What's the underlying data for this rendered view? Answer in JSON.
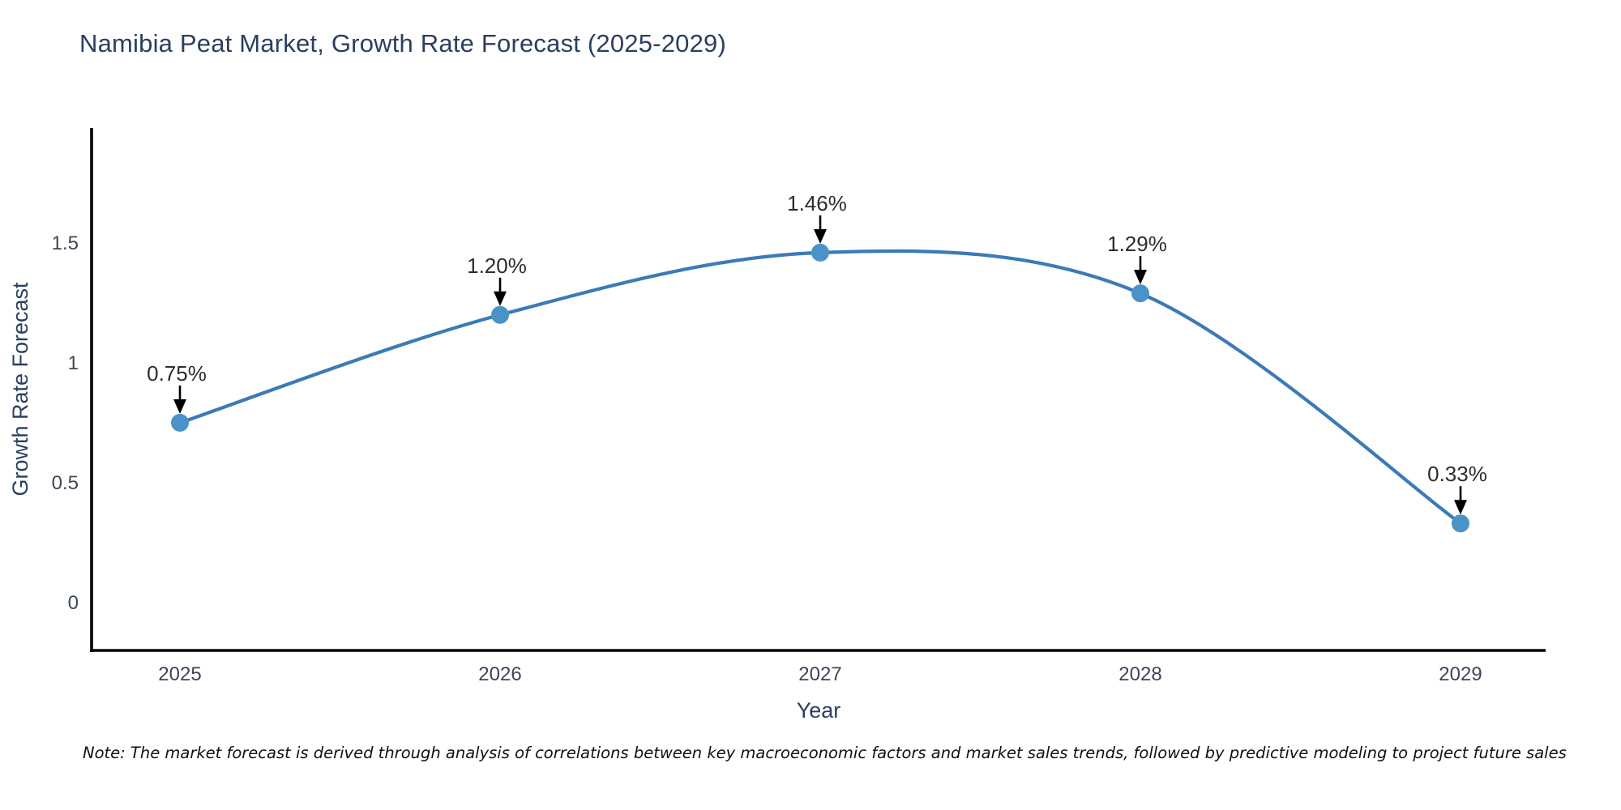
{
  "header": {
    "title": "Namibia Peat Market, Growth Rate Forecast (2025-2029)"
  },
  "footnote": {
    "text": "Note: The market forecast is derived through analysis of correlations between key macroeconomic factors and market sales trends, followed by predictive modeling to project future sales"
  },
  "chart_data": {
    "type": "line",
    "title": "Namibia Peat Market, Growth Rate Forecast (2025-2029)",
    "x": [
      2025,
      2026,
      2027,
      2028,
      2029
    ],
    "xtick_labels": [
      "2025",
      "2026",
      "2027",
      "2028",
      "2029"
    ],
    "series": [
      {
        "name": "Growth Rate Forecast",
        "values": [
          0.75,
          1.2,
          1.46,
          1.29,
          0.33
        ]
      }
    ],
    "point_labels": [
      "0.75%",
      "1.20%",
      "1.46%",
      "1.29%",
      "0.33%"
    ],
    "xlabel": "Year",
    "ylabel": "Growth Rate Forecast",
    "yticks": [
      0,
      0.5,
      1,
      1.5
    ],
    "ytick_labels": [
      "0",
      "0.5",
      "1",
      "1.5"
    ],
    "ylim": [
      -0.2,
      1.98
    ],
    "grid": false,
    "legend_position": "none",
    "line_shape": "spline",
    "colors": {
      "line": "#3c7ab7",
      "marker": "#4a92c8",
      "axis": "#000000",
      "tick_text": "#3d4657",
      "axis_title_text": "#2a3f5f",
      "title_text": "#2a3f5f",
      "annotation_text": "#2d2d2d",
      "arrow": "#000000",
      "background": "#ffffff"
    }
  }
}
